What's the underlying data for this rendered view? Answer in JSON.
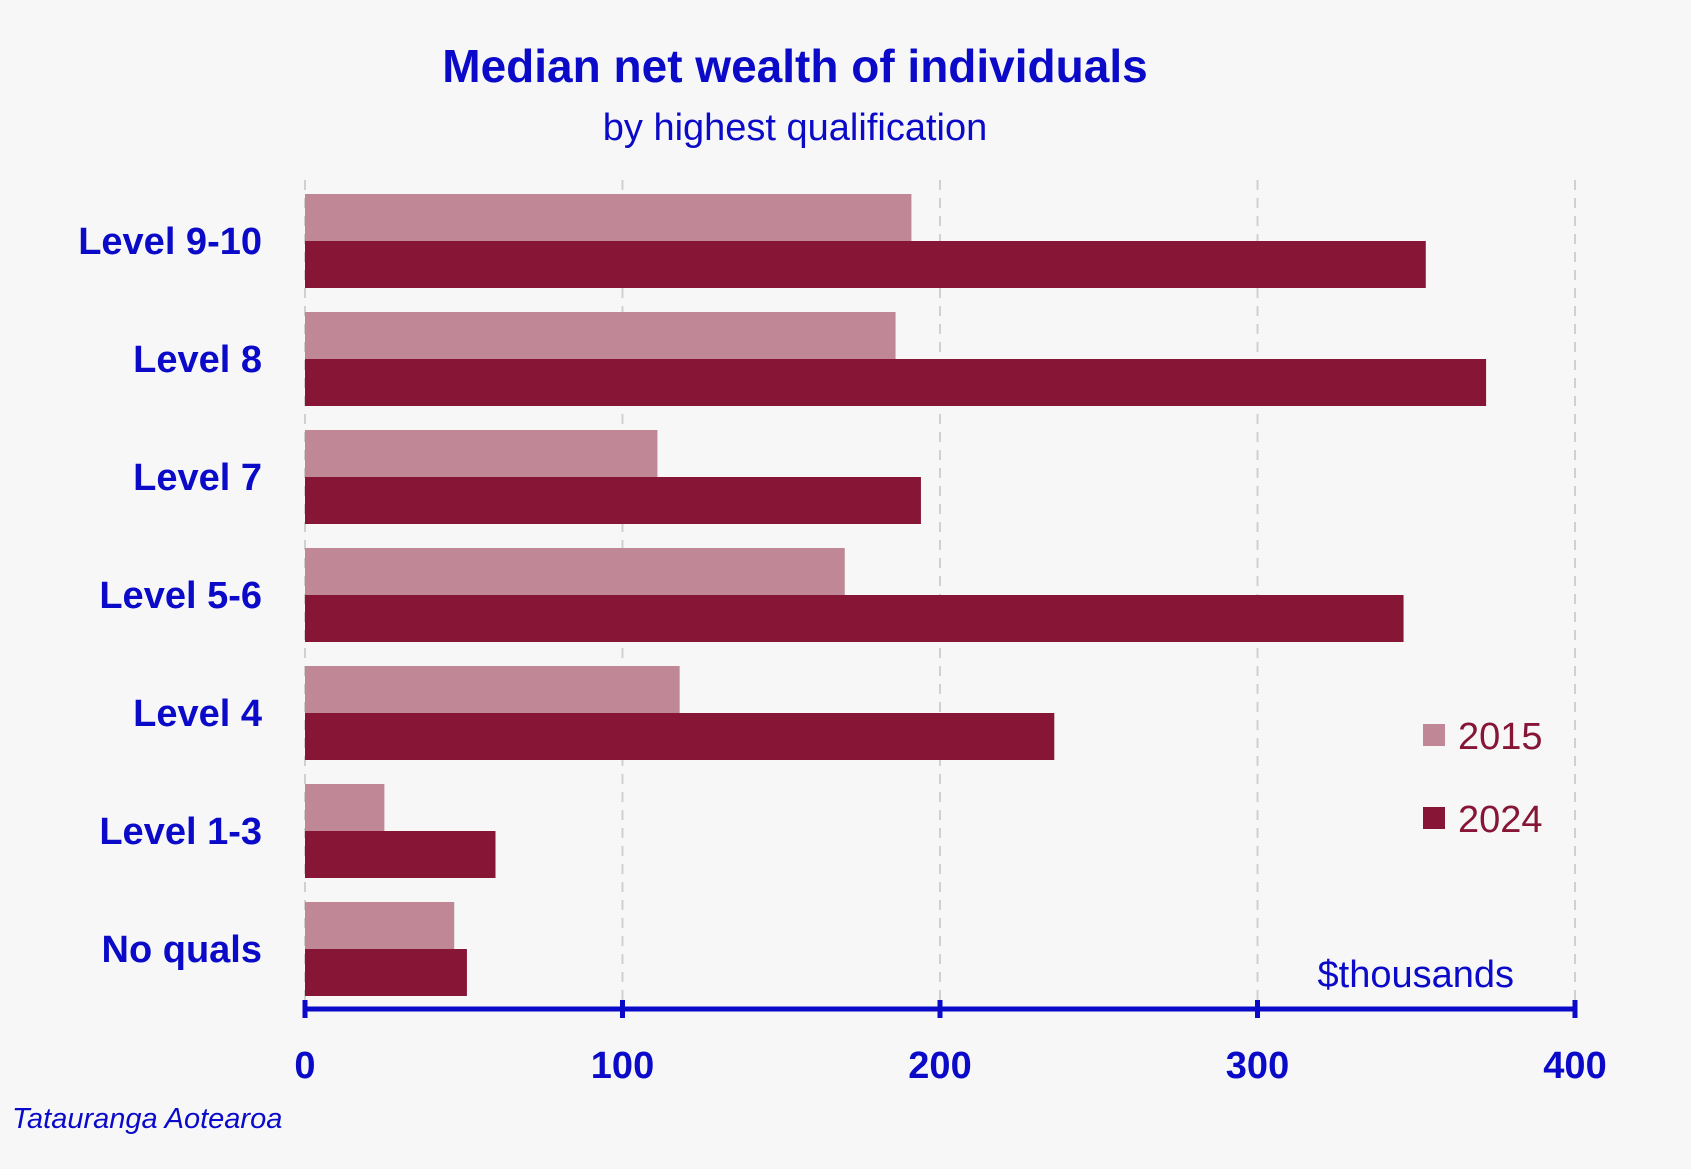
{
  "chart_data": {
    "type": "bar",
    "orientation": "horizontal",
    "title": "Median net wealth of individuals",
    "subtitle": "by highest qualification",
    "categories": [
      "Level 9-10",
      "Level 8",
      "Level 7",
      "Level 5-6",
      "Level 4",
      "Level 1-3",
      "No quals"
    ],
    "series": [
      {
        "name": "2015",
        "values": [
          191,
          186,
          111,
          170,
          118,
          25,
          47
        ],
        "color": "#c08796"
      },
      {
        "name": "2024",
        "values": [
          353,
          372,
          194,
          346,
          236,
          60,
          51
        ],
        "color": "#871636"
      }
    ],
    "xlabel": "$thousands",
    "xlim": [
      0,
      400
    ],
    "xticks": [
      "0",
      "100",
      "200",
      "300",
      "400"
    ],
    "grid": true,
    "legend_position": "right",
    "source": "Tatauranga Aotearoa"
  },
  "colors": {
    "text_blue": "#0a0ac8",
    "axis_blue": "#0a0ac8",
    "grid": "#d0d0d0",
    "background": "#f7f7f7",
    "legend_text": "#871636"
  }
}
